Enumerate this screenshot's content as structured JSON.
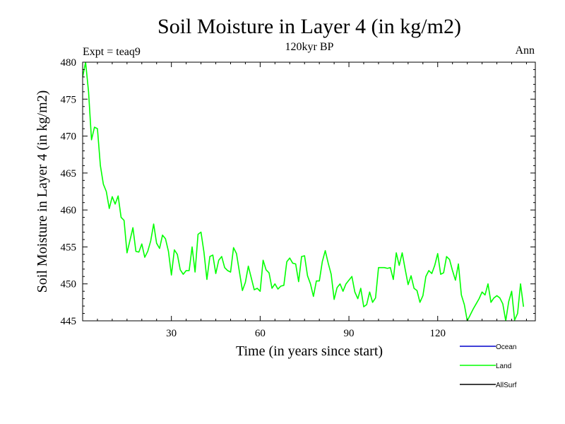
{
  "chart_data": {
    "type": "line",
    "title": "Soil Moisture in Layer 4 (in kg/m2)",
    "subtitle": "120kyr BP",
    "expt_label": "Expt = teaq9",
    "season_label": "Ann",
    "xlabel": "Time (in years since start)",
    "ylabel": "Soil Moisture in Layer 4 (in kg/m2)",
    "xlim": [
      0,
      153
    ],
    "ylim": [
      445,
      480
    ],
    "xticks": [
      30,
      60,
      90,
      120
    ],
    "yticks": [
      445,
      450,
      455,
      460,
      465,
      470,
      475,
      480
    ],
    "legend": [
      {
        "name": "Ocean",
        "color": "#0000cc"
      },
      {
        "name": "Land",
        "color": "#00ff00"
      },
      {
        "name": "AllSurf",
        "color": "#000000"
      }
    ],
    "series": [
      {
        "name": "Land",
        "color": "#00ff00",
        "x_start": 0,
        "x_step": 1,
        "values": [
          478,
          480,
          476,
          469.5,
          471.2,
          471,
          466,
          463.5,
          462.5,
          460.2,
          461.8,
          460.8,
          461.9,
          459,
          458.6,
          454.2,
          455.9,
          457.6,
          454.4,
          454.3,
          455.4,
          453.6,
          454.4,
          455.8,
          458.1,
          455.5,
          454.8,
          456.6,
          456.1,
          454.4,
          451.2,
          454.6,
          454,
          451.9,
          451.3,
          451.8,
          451.8,
          455,
          451.6,
          456.7,
          457,
          454.3,
          450.6,
          453.7,
          453.9,
          451.4,
          453.2,
          453.7,
          452.2,
          451.8,
          451.6,
          454.9,
          454.1,
          451.6,
          449.1,
          450.2,
          452.4,
          450.8,
          449.2,
          449.4,
          449,
          453.2,
          451.9,
          451.5,
          449.4,
          450,
          449.3,
          449.7,
          449.8,
          453,
          453.5,
          452.8,
          452.7,
          450.3,
          453.7,
          453.8,
          451.1,
          450,
          448.3,
          450.4,
          450.4,
          453,
          454.5,
          452.8,
          451.3,
          447.9,
          449.5,
          450,
          449,
          450,
          450.5,
          451,
          448.9,
          448,
          449.4,
          446.9,
          447.2,
          448.9,
          447.5,
          448.1,
          452.2,
          452.2,
          452.2,
          452.1,
          452.2,
          450.6,
          454.2,
          452.5,
          454.2,
          452,
          449.9,
          451.1,
          449.4,
          449.1,
          447.5,
          448.4,
          451,
          451.8,
          451.4,
          452.5,
          454.1,
          451.3,
          451.5,
          453.7,
          453.3,
          451.8,
          450.5,
          452.7,
          448.5,
          447.2,
          445,
          445.8,
          446.6,
          447.3,
          448,
          448.9,
          448.5,
          450,
          447.5,
          448.1,
          448.4,
          448.1,
          447.3,
          445,
          447.6,
          449,
          445.1,
          446,
          450,
          446.9
        ]
      }
    ]
  }
}
